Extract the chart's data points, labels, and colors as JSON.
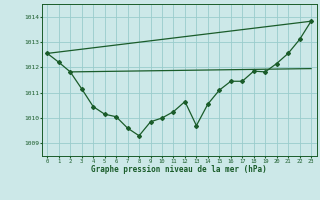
{
  "bg_color": "#cce8e8",
  "grid_color": "#99cccc",
  "line_color": "#1a5c2a",
  "xlabel": "Graphe pression niveau de la mer (hPa)",
  "xlim": [
    -0.5,
    23.5
  ],
  "ylim": [
    1008.5,
    1014.5
  ],
  "yticks": [
    1009,
    1010,
    1011,
    1012,
    1013,
    1014
  ],
  "xticks": [
    0,
    1,
    2,
    3,
    4,
    5,
    6,
    7,
    8,
    9,
    10,
    11,
    12,
    13,
    14,
    15,
    16,
    17,
    18,
    19,
    20,
    21,
    22,
    23
  ],
  "line1_x": [
    0,
    23
  ],
  "line1_y": [
    1012.55,
    1013.82
  ],
  "line2_x": [
    2,
    23
  ],
  "line2_y": [
    1011.82,
    1011.95
  ],
  "line3_x": [
    0,
    1,
    2,
    3,
    4,
    5,
    6,
    7,
    8,
    9,
    10,
    11,
    12,
    13,
    14,
    15,
    16,
    17,
    18,
    19,
    20,
    21,
    22,
    23
  ],
  "line3_y": [
    1012.55,
    1012.2,
    1011.82,
    1011.15,
    1010.45,
    1010.15,
    1010.05,
    1009.6,
    1009.3,
    1009.85,
    1010.0,
    1010.25,
    1010.65,
    1009.7,
    1010.55,
    1011.1,
    1011.45,
    1011.45,
    1011.85,
    1011.82,
    1012.15,
    1012.55,
    1013.1,
    1013.82
  ]
}
